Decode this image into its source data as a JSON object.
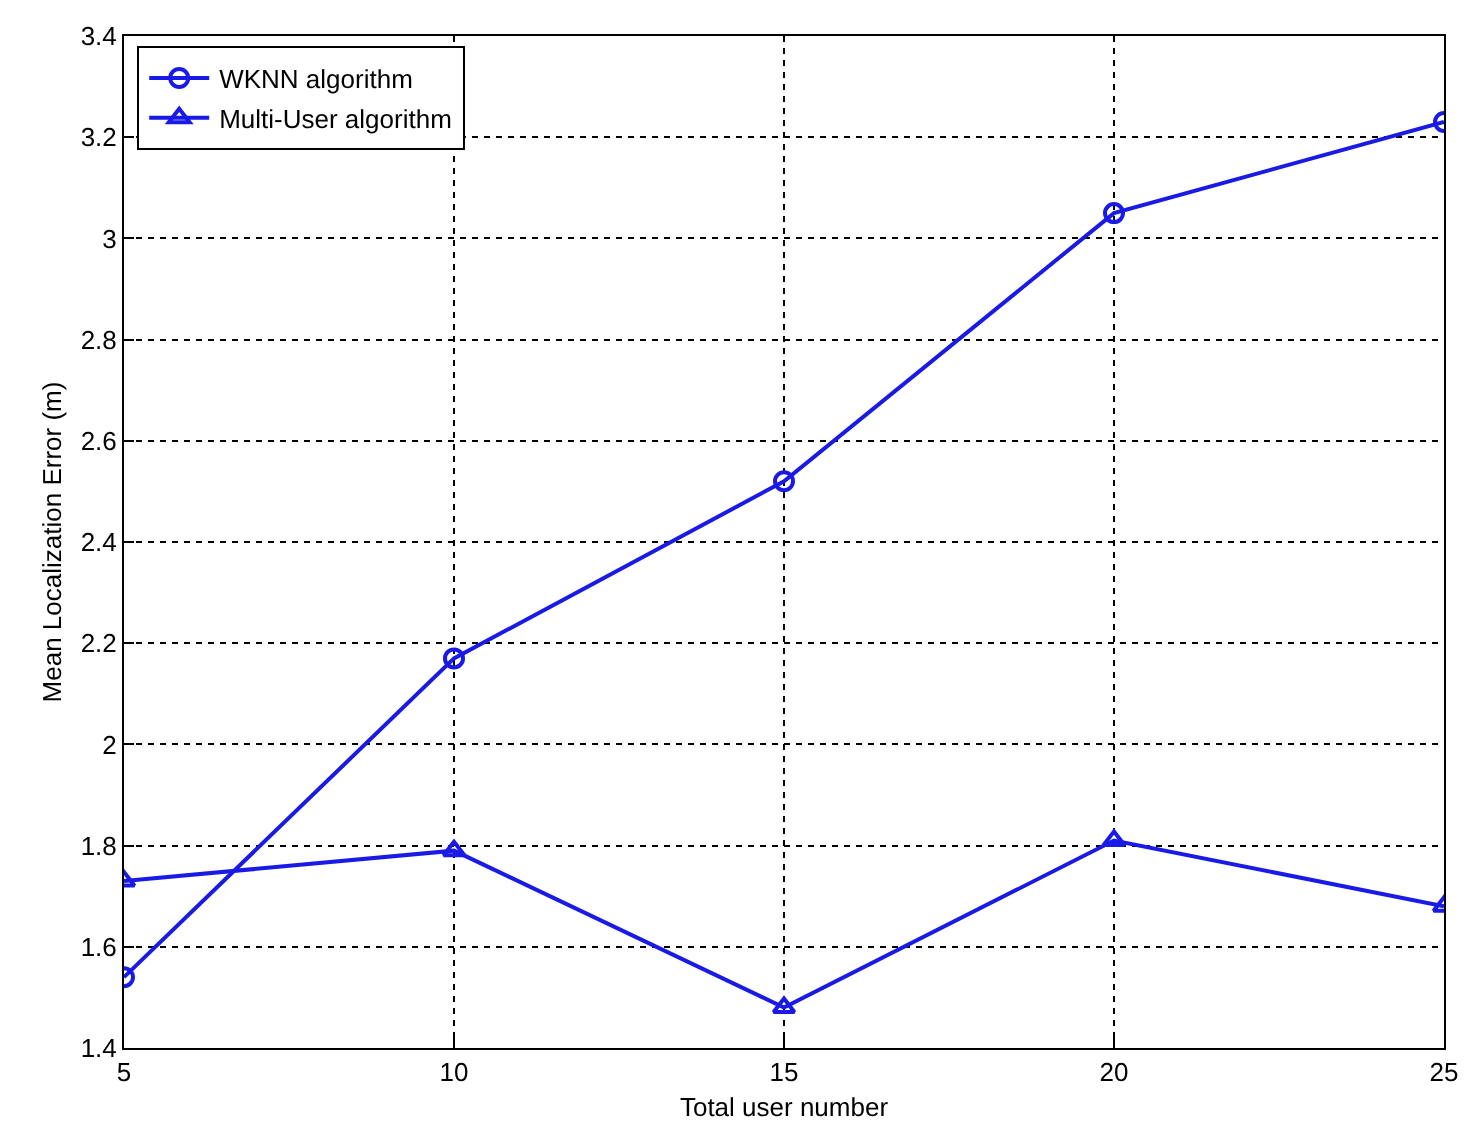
{
  "chart_data": {
    "type": "line",
    "xlabel": "Total user number",
    "ylabel": "Mean Localization Error (m)",
    "x": [
      5,
      10,
      15,
      20,
      25
    ],
    "series": [
      {
        "name": "WKNN algorithm",
        "color": "#1a1ae6",
        "values": [
          1.54,
          2.17,
          2.52,
          3.05,
          3.23
        ],
        "marker": "circle"
      },
      {
        "name": "Multi-User algorithm",
        "color": "#1a1ae6",
        "values": [
          1.73,
          1.79,
          1.48,
          1.81,
          1.68
        ],
        "marker": "triangle"
      }
    ],
    "xlim": [
      5,
      25
    ],
    "xticks": [
      5,
      10,
      15,
      20,
      25
    ],
    "ylim": [
      1.4,
      3.4
    ],
    "yticks": [
      1.4,
      1.6,
      1.8,
      2,
      2.2,
      2.4,
      2.6,
      2.8,
      3,
      3.2,
      3.4
    ],
    "grid": true,
    "legend": "top left",
    "line_style": "solid"
  }
}
